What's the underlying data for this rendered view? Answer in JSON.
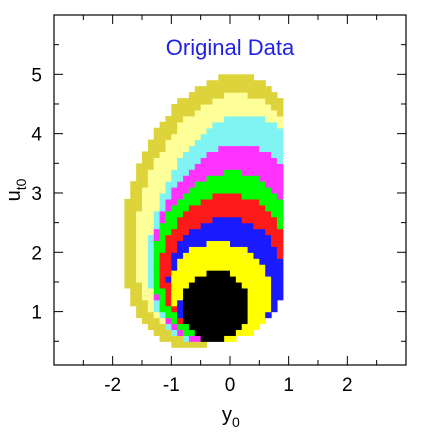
{
  "chart_data": {
    "type": "heatmap",
    "title": "Original Data",
    "xlabel": "y",
    "xlabel_sub": "0",
    "ylabel": "u",
    "ylabel_sub": "t0",
    "xlim": [
      -3.0,
      3.0
    ],
    "ylim": [
      0.1,
      6.0
    ],
    "x_ticks": [
      -2,
      -1,
      0,
      1,
      2
    ],
    "y_ticks": [
      1,
      2,
      3,
      4,
      5
    ],
    "colors": {
      "title": "#1f1fe6",
      "levels": [
        "#dcd43a",
        "#ffff9a",
        "#7ff4f2",
        "#ff33ff",
        "#00ff00",
        "#ff1a1a",
        "#1a1aff",
        "#ffff00",
        "#000000"
      ]
    },
    "contours": [
      {
        "level": 1,
        "color_index": 0,
        "cx": -0.3,
        "cy": 2.7,
        "rx": 1.45,
        "ry": 2.35,
        "rot": -0.28
      },
      {
        "level": 2,
        "color_index": 1,
        "cx": -0.22,
        "cy": 2.6,
        "rx": 1.32,
        "ry": 2.12,
        "rot": -0.28
      },
      {
        "level": 3,
        "color_index": 2,
        "cx": -0.1,
        "cy": 2.4,
        "rx": 1.2,
        "ry": 1.98,
        "rot": -0.32
      },
      {
        "level": 4,
        "color_index": 3,
        "cx": -0.1,
        "cy": 2.15,
        "rx": 1.17,
        "ry": 1.72,
        "rot": -0.32
      },
      {
        "level": 5,
        "color_index": 4,
        "cx": -0.15,
        "cy": 1.95,
        "rx": 1.12,
        "ry": 1.45,
        "rot": -0.35
      },
      {
        "level": 6,
        "color_index": 5,
        "cx": -0.1,
        "cy": 1.78,
        "rx": 1.06,
        "ry": 1.22,
        "rot": -0.35
      },
      {
        "level": 7,
        "color_index": 6,
        "cx": -0.07,
        "cy": 1.58,
        "rx": 0.98,
        "ry": 1.0,
        "rot": -0.35
      },
      {
        "level": 8,
        "color_index": 7,
        "cx": -0.15,
        "cy": 1.35,
        "rx": 0.88,
        "ry": 0.82,
        "rot": -0.4
      },
      {
        "level": 9,
        "color_index": 8,
        "cx": -0.25,
        "cy": 1.1,
        "rx": 0.56,
        "ry": 0.6,
        "rot": -0.5
      }
    ],
    "notches": [
      {
        "cx": -1.12,
        "cy": 0.95,
        "rx": 0.12,
        "ry": 0.5,
        "color_index": 7
      },
      {
        "cx": -0.85,
        "cy": 0.8,
        "rx": 0.1,
        "ry": 0.42,
        "color_index": 6
      }
    ]
  }
}
